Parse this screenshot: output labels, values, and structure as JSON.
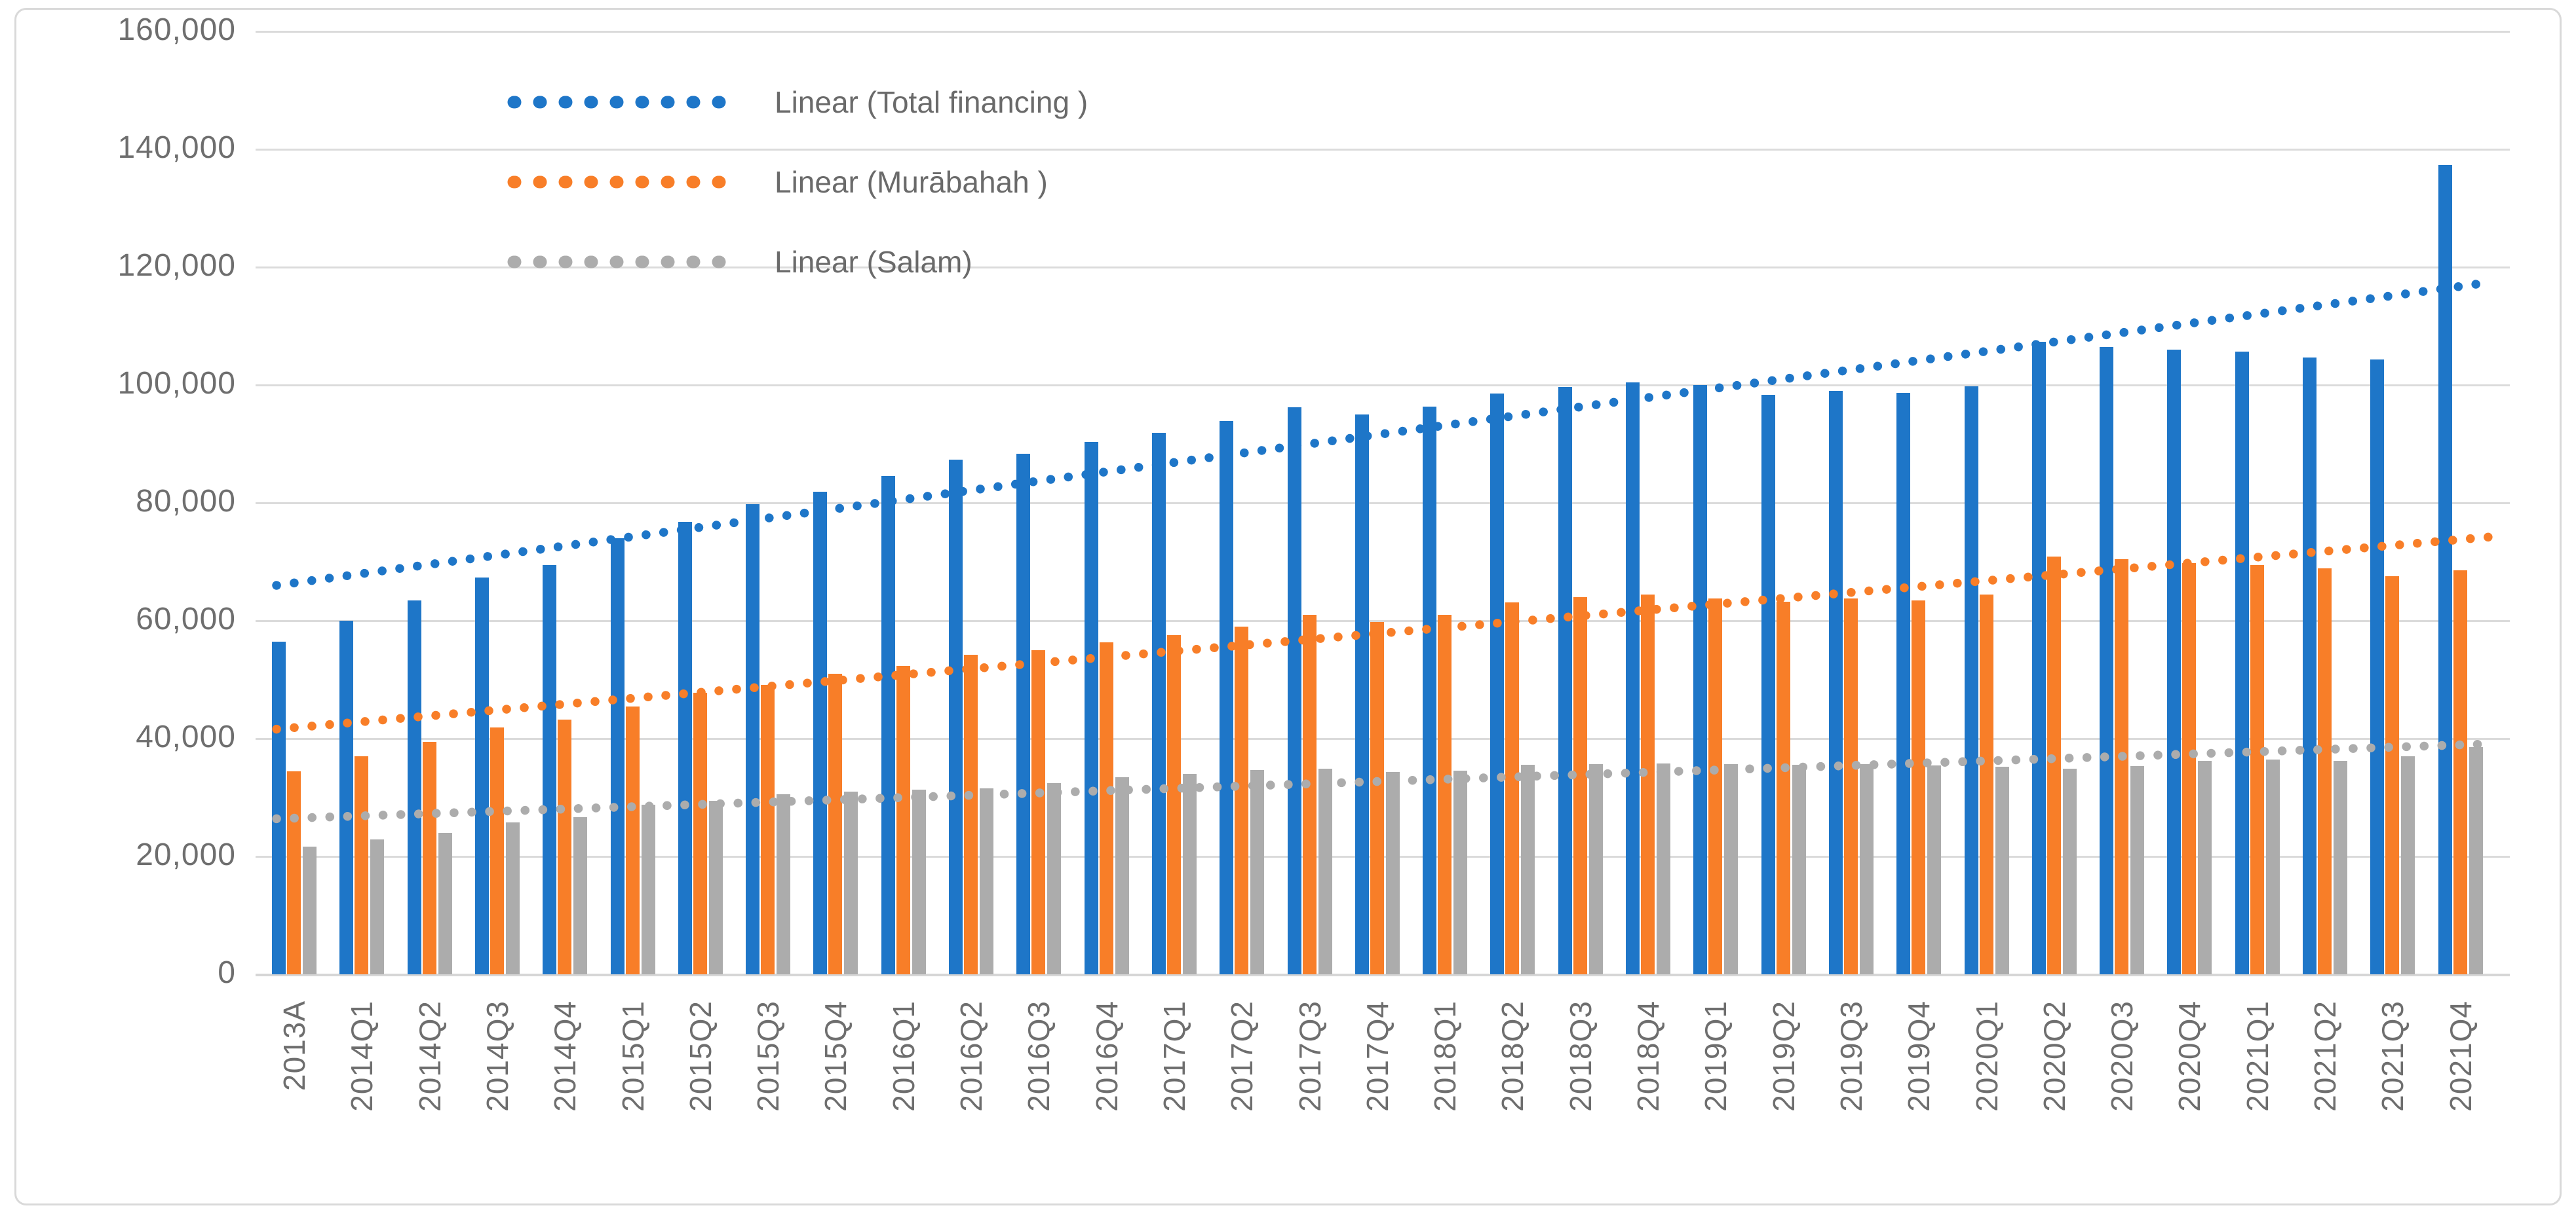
{
  "legend": {
    "items": [
      {
        "label": "Linear (Total financing )",
        "series": "total_financing"
      },
      {
        "label": "Linear (Murābahah )",
        "series": "murabahah"
      },
      {
        "label": "Linear (Salam)",
        "series": "salam"
      }
    ]
  },
  "y_axis": {
    "tick_labels": [
      "160,000",
      "140,000",
      "120,000",
      "100,000",
      "80,000",
      "60,000",
      "40,000",
      "20,000",
      "0"
    ],
    "max": 160000,
    "step": 20000
  },
  "x_axis": {
    "categories": [
      "2013A",
      "2014Q1",
      "2014Q2",
      "2014Q3",
      "2014Q4",
      "2015Q1",
      "2015Q2",
      "2015Q3",
      "2015Q4",
      "2016Q1",
      "2016Q2",
      "2016Q3",
      "2016Q4",
      "2017Q1",
      "2017Q2",
      "2017Q3",
      "2017Q4",
      "2018Q1",
      "2018Q2",
      "2018Q3",
      "2018Q4",
      "2019Q1",
      "2019Q2",
      "2019Q3",
      "2019Q4",
      "2020Q1",
      "2020Q2",
      "2020Q3",
      "2020Q4",
      "2021Q1",
      "2021Q2",
      "2021Q3",
      "2021Q4"
    ]
  },
  "chart_data": {
    "type": "bar",
    "title": "",
    "xlabel": "",
    "ylabel": "",
    "ylim": [
      0,
      160000
    ],
    "grid": true,
    "legend_position": "top-left-inside",
    "categories": [
      "2013A",
      "2014Q1",
      "2014Q2",
      "2014Q3",
      "2014Q4",
      "2015Q1",
      "2015Q2",
      "2015Q3",
      "2015Q4",
      "2016Q1",
      "2016Q2",
      "2016Q3",
      "2016Q4",
      "2017Q1",
      "2017Q2",
      "2017Q3",
      "2017Q4",
      "2018Q1",
      "2018Q2",
      "2018Q3",
      "2018Q4",
      "2019Q1",
      "2019Q2",
      "2019Q3",
      "2019Q4",
      "2020Q1",
      "2020Q2",
      "2020Q3",
      "2020Q4",
      "2021Q1",
      "2021Q2",
      "2021Q3",
      "2021Q4"
    ],
    "series": [
      {
        "name": "Total financing",
        "color": "#1e76c8",
        "values": [
          56400,
          60000,
          63400,
          67300,
          69400,
          74000,
          76800,
          79800,
          81900,
          84600,
          87300,
          88300,
          90300,
          91900,
          93900,
          96200,
          95000,
          96300,
          98600,
          99700,
          100400,
          100000,
          98300,
          99000,
          98700,
          99800,
          107300,
          106500,
          106000,
          105700,
          104700,
          104300,
          137300
        ]
      },
      {
        "name": "Murābahah",
        "color": "#f87e28",
        "values": [
          34400,
          37000,
          39400,
          41900,
          43200,
          45400,
          47800,
          49100,
          51000,
          52300,
          54200,
          55000,
          56300,
          57600,
          59000,
          61000,
          59800,
          61000,
          63100,
          64000,
          64400,
          63800,
          63200,
          63800,
          63400,
          64400,
          70900,
          70400,
          69800,
          69400,
          68900,
          67600,
          68600
        ]
      },
      {
        "name": "Salam",
        "color": "#acacac",
        "values": [
          21700,
          22900,
          24000,
          25800,
          26700,
          28800,
          29400,
          30600,
          31000,
          31300,
          31600,
          32500,
          33400,
          34000,
          34700,
          34900,
          34300,
          34600,
          35600,
          35700,
          35800,
          35700,
          35600,
          35700,
          35500,
          35200,
          34900,
          35300,
          36200,
          36500,
          36200,
          37000,
          38600
        ]
      }
    ],
    "trendlines": [
      {
        "name": "Linear (Total financing )",
        "series": "Total financing",
        "color": "#1e76c8",
        "start_value": 66000,
        "end_value": 117400
      },
      {
        "name": "Linear (Murābahah )",
        "series": "Murābahah",
        "color": "#f87e28",
        "start_value": 41600,
        "end_value": 74200
      },
      {
        "name": "Linear (Salam)",
        "series": "Salam",
        "color": "#acacac",
        "start_value": 26400,
        "end_value": 39100
      }
    ]
  },
  "colors": {
    "total_financing": "#1e76c8",
    "murabahah": "#f87e28",
    "salam": "#acacac",
    "gridline": "#dbdbdb",
    "axis_text": "#6e6e6e",
    "legend_text": "#6a6a6a",
    "border": "#d9d9d9",
    "background": "#ffffff"
  }
}
